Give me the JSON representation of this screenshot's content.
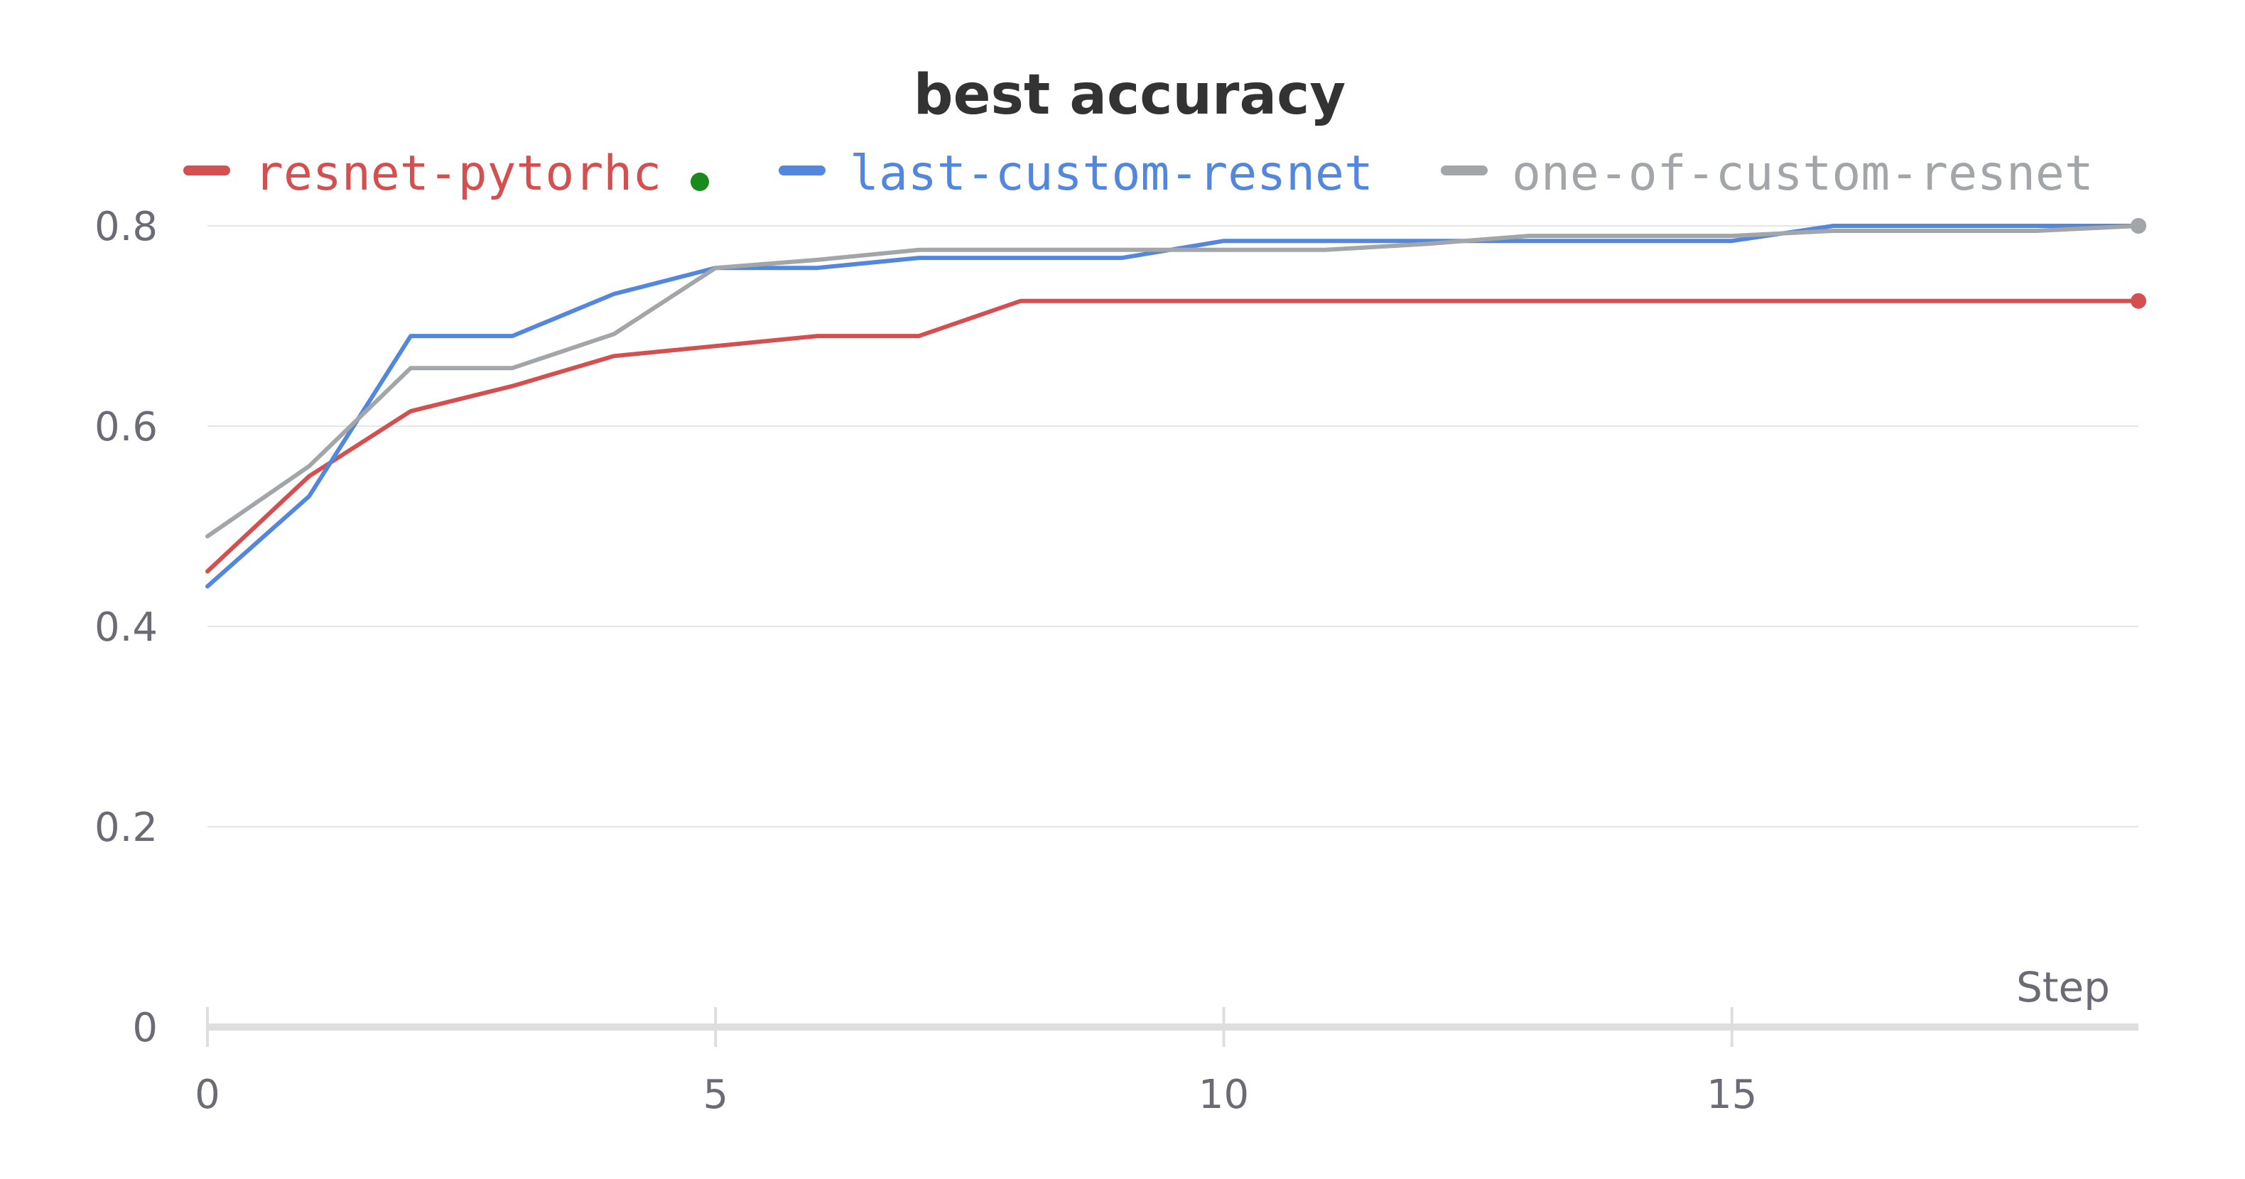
{
  "chart_data": {
    "type": "line",
    "title": "best accuracy",
    "xlabel": "Step",
    "ylabel": "",
    "xlim": [
      0,
      19
    ],
    "ylim": [
      0,
      0.8
    ],
    "x_ticks": [
      "0",
      "5",
      "10",
      "15"
    ],
    "y_ticks": [
      "0",
      "0.2",
      "0.4",
      "0.6",
      "0.8"
    ],
    "grid": true,
    "legend_position": "top",
    "x": [
      0,
      1,
      2,
      3,
      4,
      5,
      6,
      7,
      8,
      9,
      10,
      11,
      12,
      13,
      14,
      15,
      16,
      17,
      18,
      19
    ],
    "series": [
      {
        "name": "resnet-pytorhc",
        "color": "#d44f4f",
        "values": [
          0.455,
          0.55,
          0.615,
          0.64,
          0.67,
          0.68,
          0.69,
          0.69,
          0.725,
          0.725,
          0.725,
          0.725,
          0.725,
          0.725,
          0.725,
          0.725,
          0.725,
          0.725,
          0.725,
          0.725
        ]
      },
      {
        "name": "last-custom-resnet",
        "color": "#5387dd",
        "values": [
          0.44,
          0.53,
          0.69,
          0.69,
          0.732,
          0.758,
          0.758,
          0.768,
          0.768,
          0.768,
          0.785,
          0.785,
          0.785,
          0.785,
          0.785,
          0.785,
          0.8,
          0.8,
          0.8,
          0.8
        ]
      },
      {
        "name": "one-of-custom-resnet",
        "color": "#a2a6a9",
        "values": [
          0.49,
          0.56,
          0.658,
          0.658,
          0.692,
          0.758,
          0.766,
          0.776,
          0.776,
          0.776,
          0.776,
          0.776,
          0.782,
          0.79,
          0.79,
          0.79,
          0.795,
          0.795,
          0.795,
          0.8
        ]
      }
    ],
    "legend_marker_color": "#1a8a1a"
  }
}
